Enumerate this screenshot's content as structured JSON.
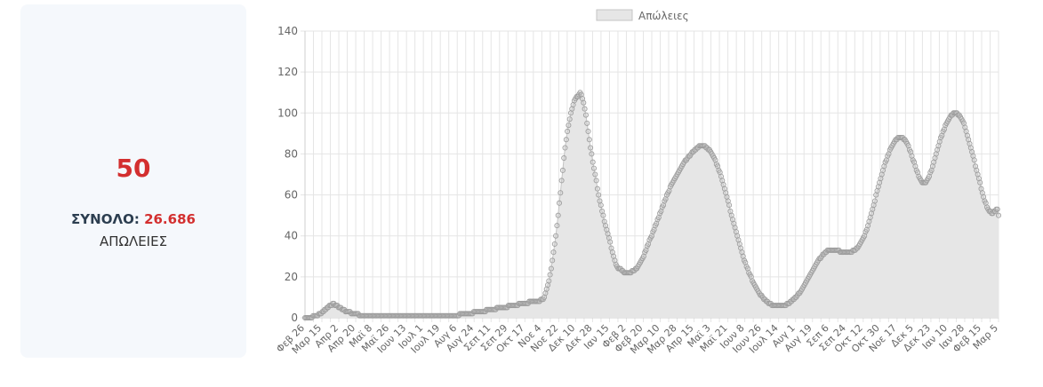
{
  "stat": {
    "value": "50",
    "total_label": "ΣΥΝΟΛΟ:",
    "total_value": "26.686",
    "caption": "ΑΠΩΛΕΙΕΣ"
  },
  "colors": {
    "fill": "#e6e6e6",
    "line": "#c4c4c4",
    "point": "#9a9a9a",
    "grid": "#e5e5e5",
    "axis": "#666666",
    "accent": "#d32f2f"
  },
  "chart_data": {
    "type": "area",
    "title": "",
    "xlabel": "",
    "ylabel": "",
    "ylim": [
      0,
      140
    ],
    "yticks": [
      0,
      20,
      40,
      60,
      80,
      100,
      120,
      140
    ],
    "grid": true,
    "legend": "top-center",
    "x_ticks": [
      "Φεβ 26",
      "Μαρ 15",
      "Απρ 2",
      "Απρ 20",
      "Μαϊ 8",
      "Μαϊ 26",
      "Ιουν 13",
      "Ιουλ 1",
      "Ιουλ 19",
      "Αυγ 6",
      "Αυγ 24",
      "Σεπ 11",
      "Σεπ 29",
      "Οκτ 17",
      "Νοε 4",
      "Νοε 22",
      "Δεκ 10",
      "Δεκ 28",
      "Ιαν 15",
      "Φεβ 2",
      "Φεβ 20",
      "Μαρ 10",
      "Μαρ 28",
      "Απρ 15",
      "Μαϊ 3",
      "Μαϊ 21",
      "Ιουν 8",
      "Ιουν 26",
      "Ιουλ 14",
      "Αυγ 1",
      "Αυγ 19",
      "Σεπ 6",
      "Σεπ 24",
      "Οκτ 12",
      "Οκτ 30",
      "Νοε 17",
      "Δεκ 5",
      "Δεκ 23",
      "Ιαν 10",
      "Ιαν 28",
      "Φεβ 15",
      "Μαρ 5"
    ],
    "series": [
      {
        "name": "Απώλειες",
        "values": [
          0,
          0,
          0,
          0,
          0,
          0,
          0,
          1,
          1,
          1,
          1,
          1,
          2,
          2,
          2,
          3,
          3,
          4,
          4,
          5,
          5,
          6,
          6,
          6,
          7,
          7,
          6,
          6,
          6,
          5,
          5,
          5,
          4,
          4,
          4,
          3,
          3,
          3,
          3,
          3,
          2,
          2,
          2,
          2,
          2,
          2,
          2,
          1,
          1,
          1,
          1,
          1,
          1,
          1,
          1,
          1,
          1,
          1,
          1,
          1,
          1,
          1,
          1,
          1,
          1,
          1,
          1,
          1,
          1,
          1,
          1,
          1,
          1,
          1,
          1,
          1,
          1,
          1,
          1,
          1,
          1,
          1,
          1,
          1,
          1,
          1,
          1,
          1,
          1,
          1,
          1,
          1,
          1,
          1,
          1,
          1,
          1,
          1,
          1,
          1,
          1,
          1,
          1,
          1,
          1,
          1,
          1,
          1,
          1,
          1,
          1,
          1,
          1,
          1,
          1,
          1,
          1,
          1,
          1,
          1,
          1,
          1,
          1,
          1,
          1,
          1,
          1,
          1,
          1,
          1,
          1,
          1,
          1,
          1,
          2,
          2,
          2,
          2,
          2,
          2,
          2,
          2,
          2,
          2,
          2,
          2,
          3,
          3,
          3,
          3,
          3,
          3,
          3,
          3,
          3,
          3,
          3,
          4,
          4,
          4,
          4,
          4,
          4,
          4,
          4,
          4,
          5,
          5,
          5,
          5,
          5,
          5,
          5,
          5,
          5,
          5,
          6,
          6,
          6,
          6,
          6,
          6,
          6,
          6,
          6,
          7,
          7,
          7,
          7,
          7,
          7,
          7,
          7,
          7,
          8,
          8,
          8,
          8,
          8,
          8,
          8,
          8,
          8,
          8,
          9,
          9,
          9,
          10,
          12,
          14,
          16,
          18,
          21,
          24,
          28,
          32,
          36,
          40,
          45,
          50,
          56,
          61,
          67,
          72,
          78,
          83,
          87,
          91,
          94,
          97,
          100,
          102,
          104,
          106,
          107,
          108,
          108,
          109,
          110,
          109,
          107,
          105,
          102,
          99,
          95,
          91,
          87,
          83,
          80,
          76,
          73,
          70,
          67,
          63,
          60,
          57,
          55,
          52,
          50,
          47,
          45,
          43,
          41,
          39,
          37,
          34,
          32,
          30,
          28,
          26,
          25,
          24,
          24,
          24,
          23,
          23,
          22,
          22,
          22,
          22,
          22,
          22,
          22,
          23,
          23,
          23,
          24,
          24,
          25,
          26,
          27,
          28,
          29,
          30,
          32,
          33,
          35,
          36,
          38,
          39,
          40,
          42,
          43,
          45,
          46,
          48,
          49,
          51,
          52,
          54,
          55,
          57,
          58,
          60,
          61,
          62,
          64,
          65,
          66,
          67,
          68,
          69,
          70,
          71,
          72,
          73,
          74,
          75,
          76,
          77,
          77,
          78,
          79,
          79,
          80,
          81,
          81,
          82,
          82,
          83,
          83,
          84,
          84,
          84,
          84,
          84,
          84,
          83,
          83,
          82,
          82,
          81,
          80,
          79,
          78,
          77,
          75,
          74,
          72,
          71,
          69,
          67,
          65,
          63,
          61,
          59,
          57,
          55,
          52,
          50,
          48,
          46,
          44,
          42,
          40,
          38,
          36,
          34,
          32,
          30,
          28,
          27,
          25,
          24,
          22,
          21,
          20,
          18,
          17,
          16,
          15,
          14,
          13,
          12,
          11,
          11,
          10,
          9,
          9,
          8,
          8,
          7,
          7,
          7,
          6,
          6,
          6,
          6,
          6,
          6,
          6,
          6,
          6,
          6,
          6,
          6,
          6,
          7,
          7,
          7,
          8,
          8,
          9,
          9,
          10,
          10,
          11,
          12,
          12,
          13,
          14,
          15,
          16,
          17,
          18,
          19,
          20,
          21,
          22,
          23,
          24,
          25,
          26,
          27,
          28,
          29,
          29,
          30,
          31,
          31,
          32,
          32,
          33,
          33,
          33,
          33,
          33,
          33,
          33,
          33,
          33,
          33,
          33,
          32,
          32,
          32,
          32,
          32,
          32,
          32,
          32,
          32,
          32,
          32,
          33,
          33,
          33,
          34,
          34,
          35,
          36,
          37,
          38,
          39,
          40,
          42,
          43,
          45,
          47,
          49,
          51,
          53,
          55,
          57,
          60,
          62,
          64,
          66,
          68,
          70,
          72,
          74,
          76,
          77,
          79,
          80,
          82,
          83,
          84,
          85,
          86,
          87,
          87,
          88,
          88,
          88,
          88,
          88,
          87,
          87,
          86,
          85,
          84,
          82,
          81,
          79,
          77,
          76,
          74,
          72,
          71,
          69,
          68,
          67,
          66,
          66,
          66,
          66,
          67,
          68,
          69,
          71,
          72,
          74,
          76,
          78,
          80,
          82,
          84,
          86,
          88,
          89,
          91,
          92,
          94,
          95,
          96,
          97,
          98,
          99,
          99,
          100,
          100,
          100,
          100,
          99,
          99,
          98,
          97,
          96,
          95,
          93,
          91,
          89,
          87,
          85,
          83,
          81,
          79,
          77,
          74,
          72,
          70,
          68,
          66,
          63,
          61,
          59,
          57,
          56,
          54,
          53,
          52,
          52,
          51,
          51,
          52,
          52,
          53,
          53,
          50
        ]
      }
    ]
  }
}
